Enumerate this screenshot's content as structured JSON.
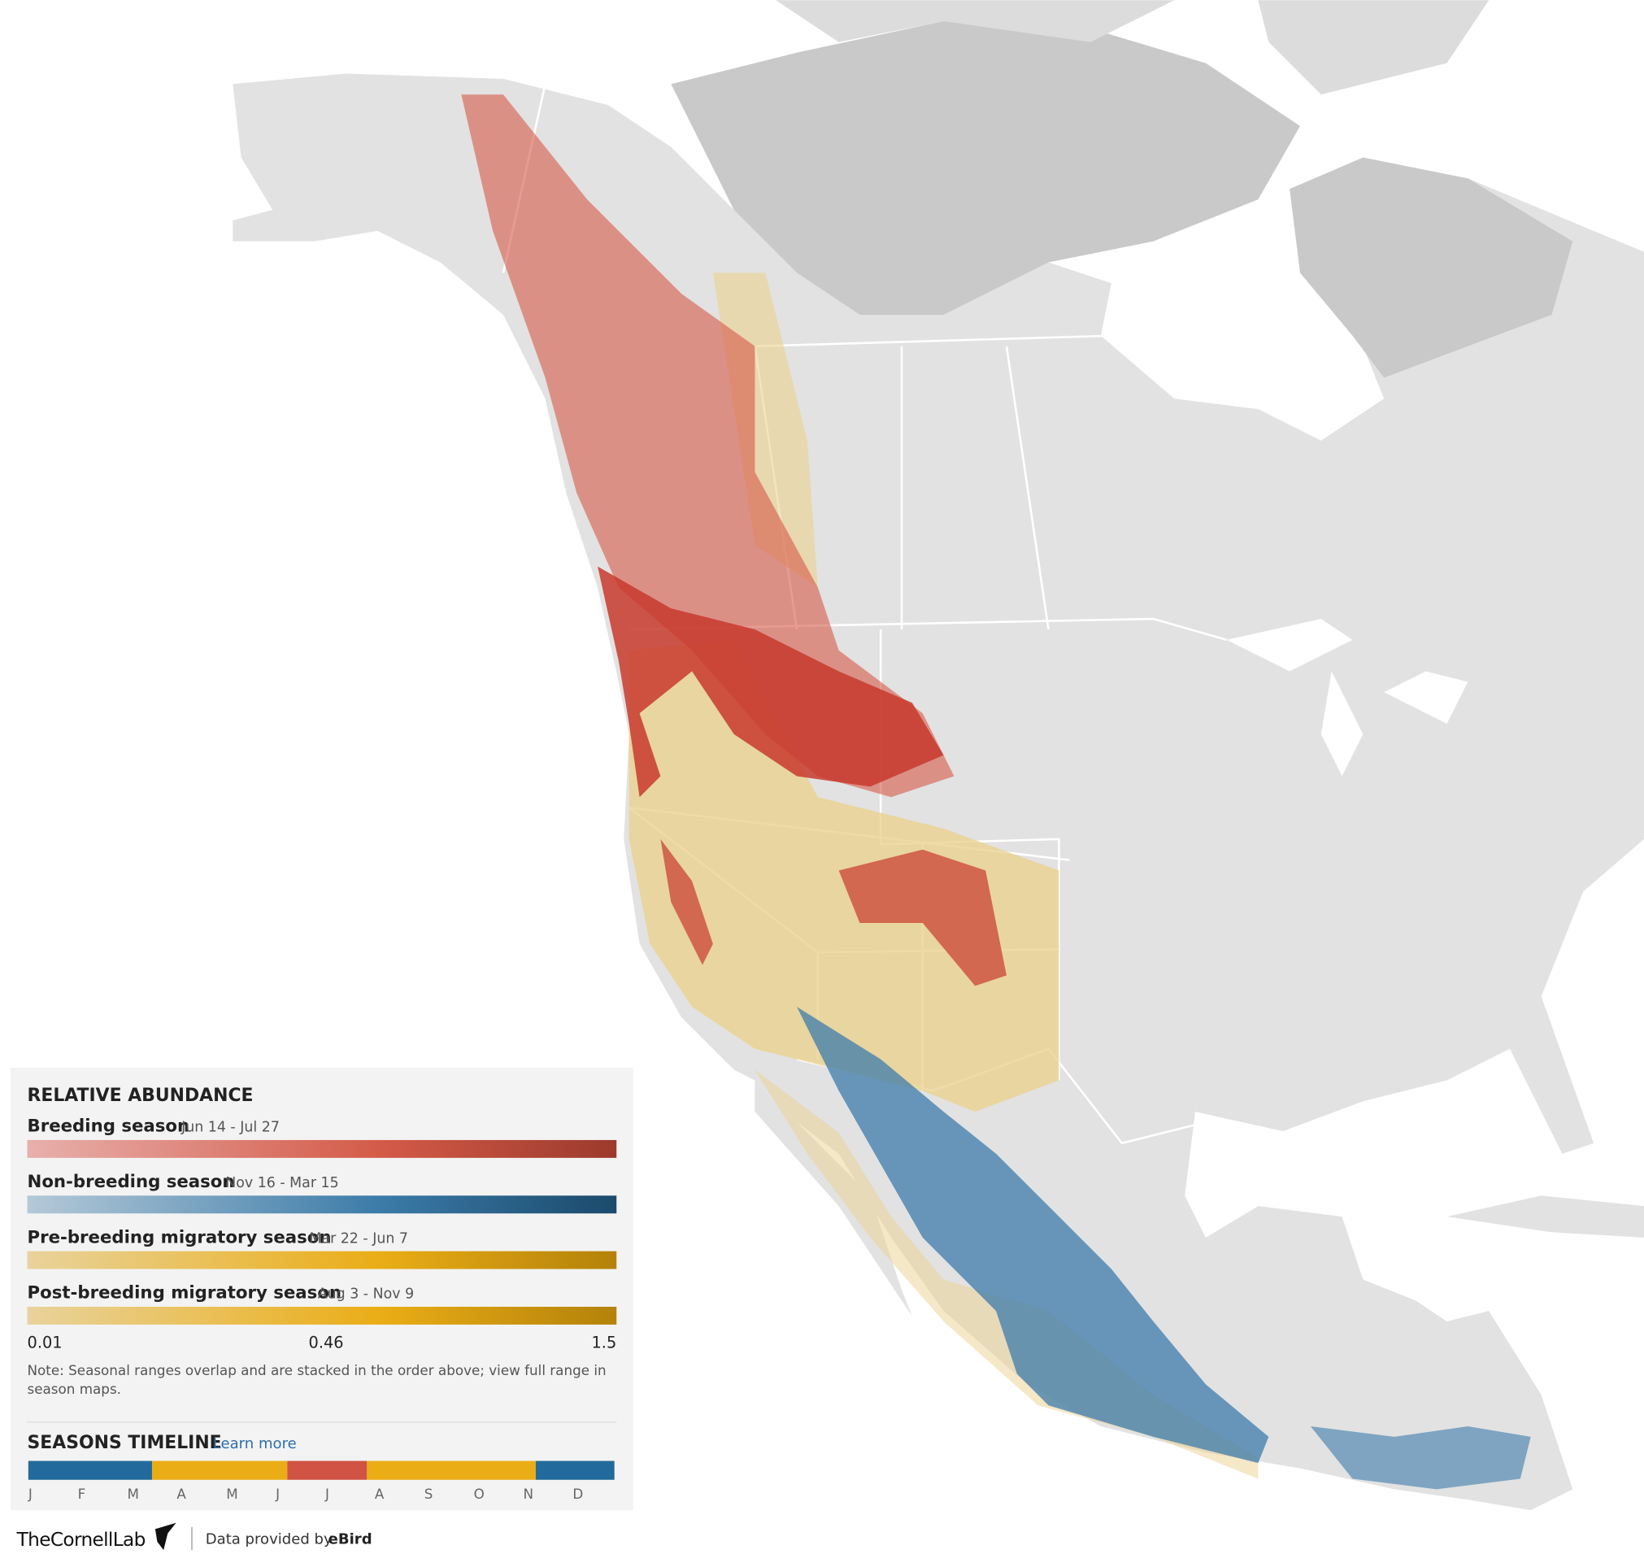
{
  "legend": {
    "title": "RELATIVE ABUNDANCE",
    "seasons": [
      {
        "name": "Breeding season",
        "dates": "Jun 14 - Jul 27"
      },
      {
        "name": "Non-breeding season",
        "dates": "Nov 16 - Mar 15"
      },
      {
        "name": "Pre-breeding migratory season",
        "dates": "Mar 22 - Jun 7"
      },
      {
        "name": "Post-breeding migratory season",
        "dates": "Aug 3 - Nov 9"
      }
    ],
    "scale": [
      0.01,
      0.46,
      1.5
    ],
    "note": [
      "Note: Seasonal ranges overlap and are stacked in the order above; view full range in",
      "season maps."
    ]
  },
  "timeline": {
    "title": "SEASONS TIMELINE",
    "link": "Learn more",
    "months": [
      "J",
      "F",
      "M",
      "A",
      "M",
      "J",
      "J",
      "A",
      "S",
      "O",
      "N",
      "D"
    ]
  },
  "footer": {
    "logo": "TheCornellLab",
    "credit": "Data provided by",
    "source": "eBird"
  }
}
